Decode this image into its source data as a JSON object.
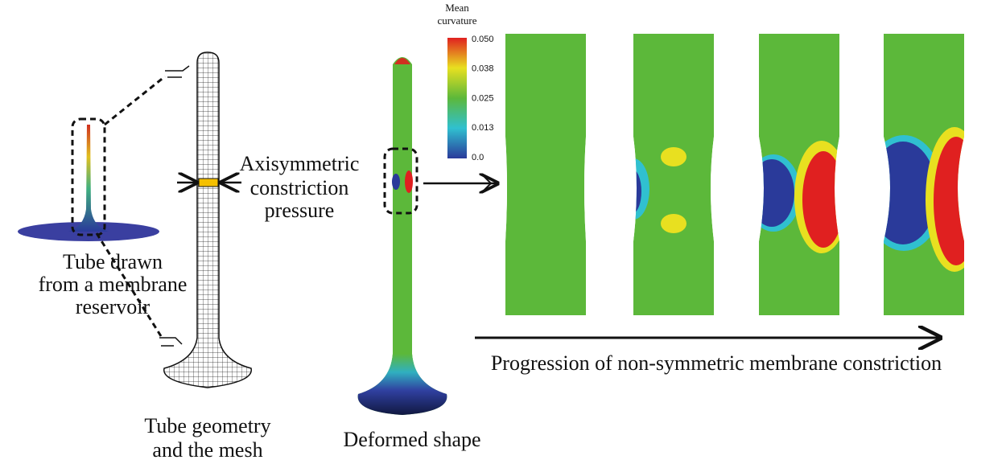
{
  "reservoir": {
    "label": [
      "Tube drawn",
      "from a membrane",
      "reservoir"
    ]
  },
  "mesh": {
    "label": [
      "Tube geometry",
      "and the mesh"
    ]
  },
  "pressure": {
    "label": [
      "Axisymmetric",
      "constriction",
      "pressure"
    ]
  },
  "deformed": {
    "label": "Deformed shape"
  },
  "colorbar": {
    "title": [
      "Mean",
      "curvature"
    ],
    "ticks": [
      "0.050",
      "0.038",
      "0.025",
      "0.013",
      "0.0"
    ]
  },
  "progression": {
    "label": "Progression of non-symmetric membrane constriction"
  }
}
